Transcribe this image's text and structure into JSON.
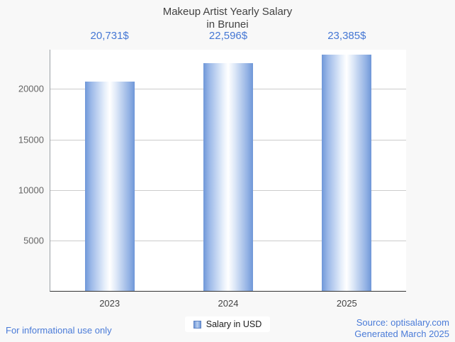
{
  "title": {
    "line1": "Makeup Artist Yearly Salary",
    "line2": "in Brunei"
  },
  "chart_data": {
    "type": "bar",
    "title": "Makeup Artist Yearly Salary in Brunei",
    "categories": [
      "2023",
      "2024",
      "2025"
    ],
    "values": [
      20731,
      22596,
      23385
    ],
    "value_labels": [
      "20,731$",
      "22,596$",
      "23,385$"
    ],
    "xlabel": "",
    "ylabel": "",
    "ylim": [
      0,
      23900
    ],
    "yticks": [
      5000,
      10000,
      15000,
      20000
    ],
    "grid": true,
    "legend": {
      "label": "Salary in USD",
      "position": "bottom"
    },
    "colors": {
      "bar_edge": "#6f97d8",
      "bar_center": "#ffffff",
      "value_label": "#4577d4",
      "link_blue": "#4a7bd8"
    }
  },
  "footer": {
    "disclaimer": "For informational use only",
    "source_line1": "Source: optisalary.com",
    "source_line2": "Generated March 2025"
  }
}
